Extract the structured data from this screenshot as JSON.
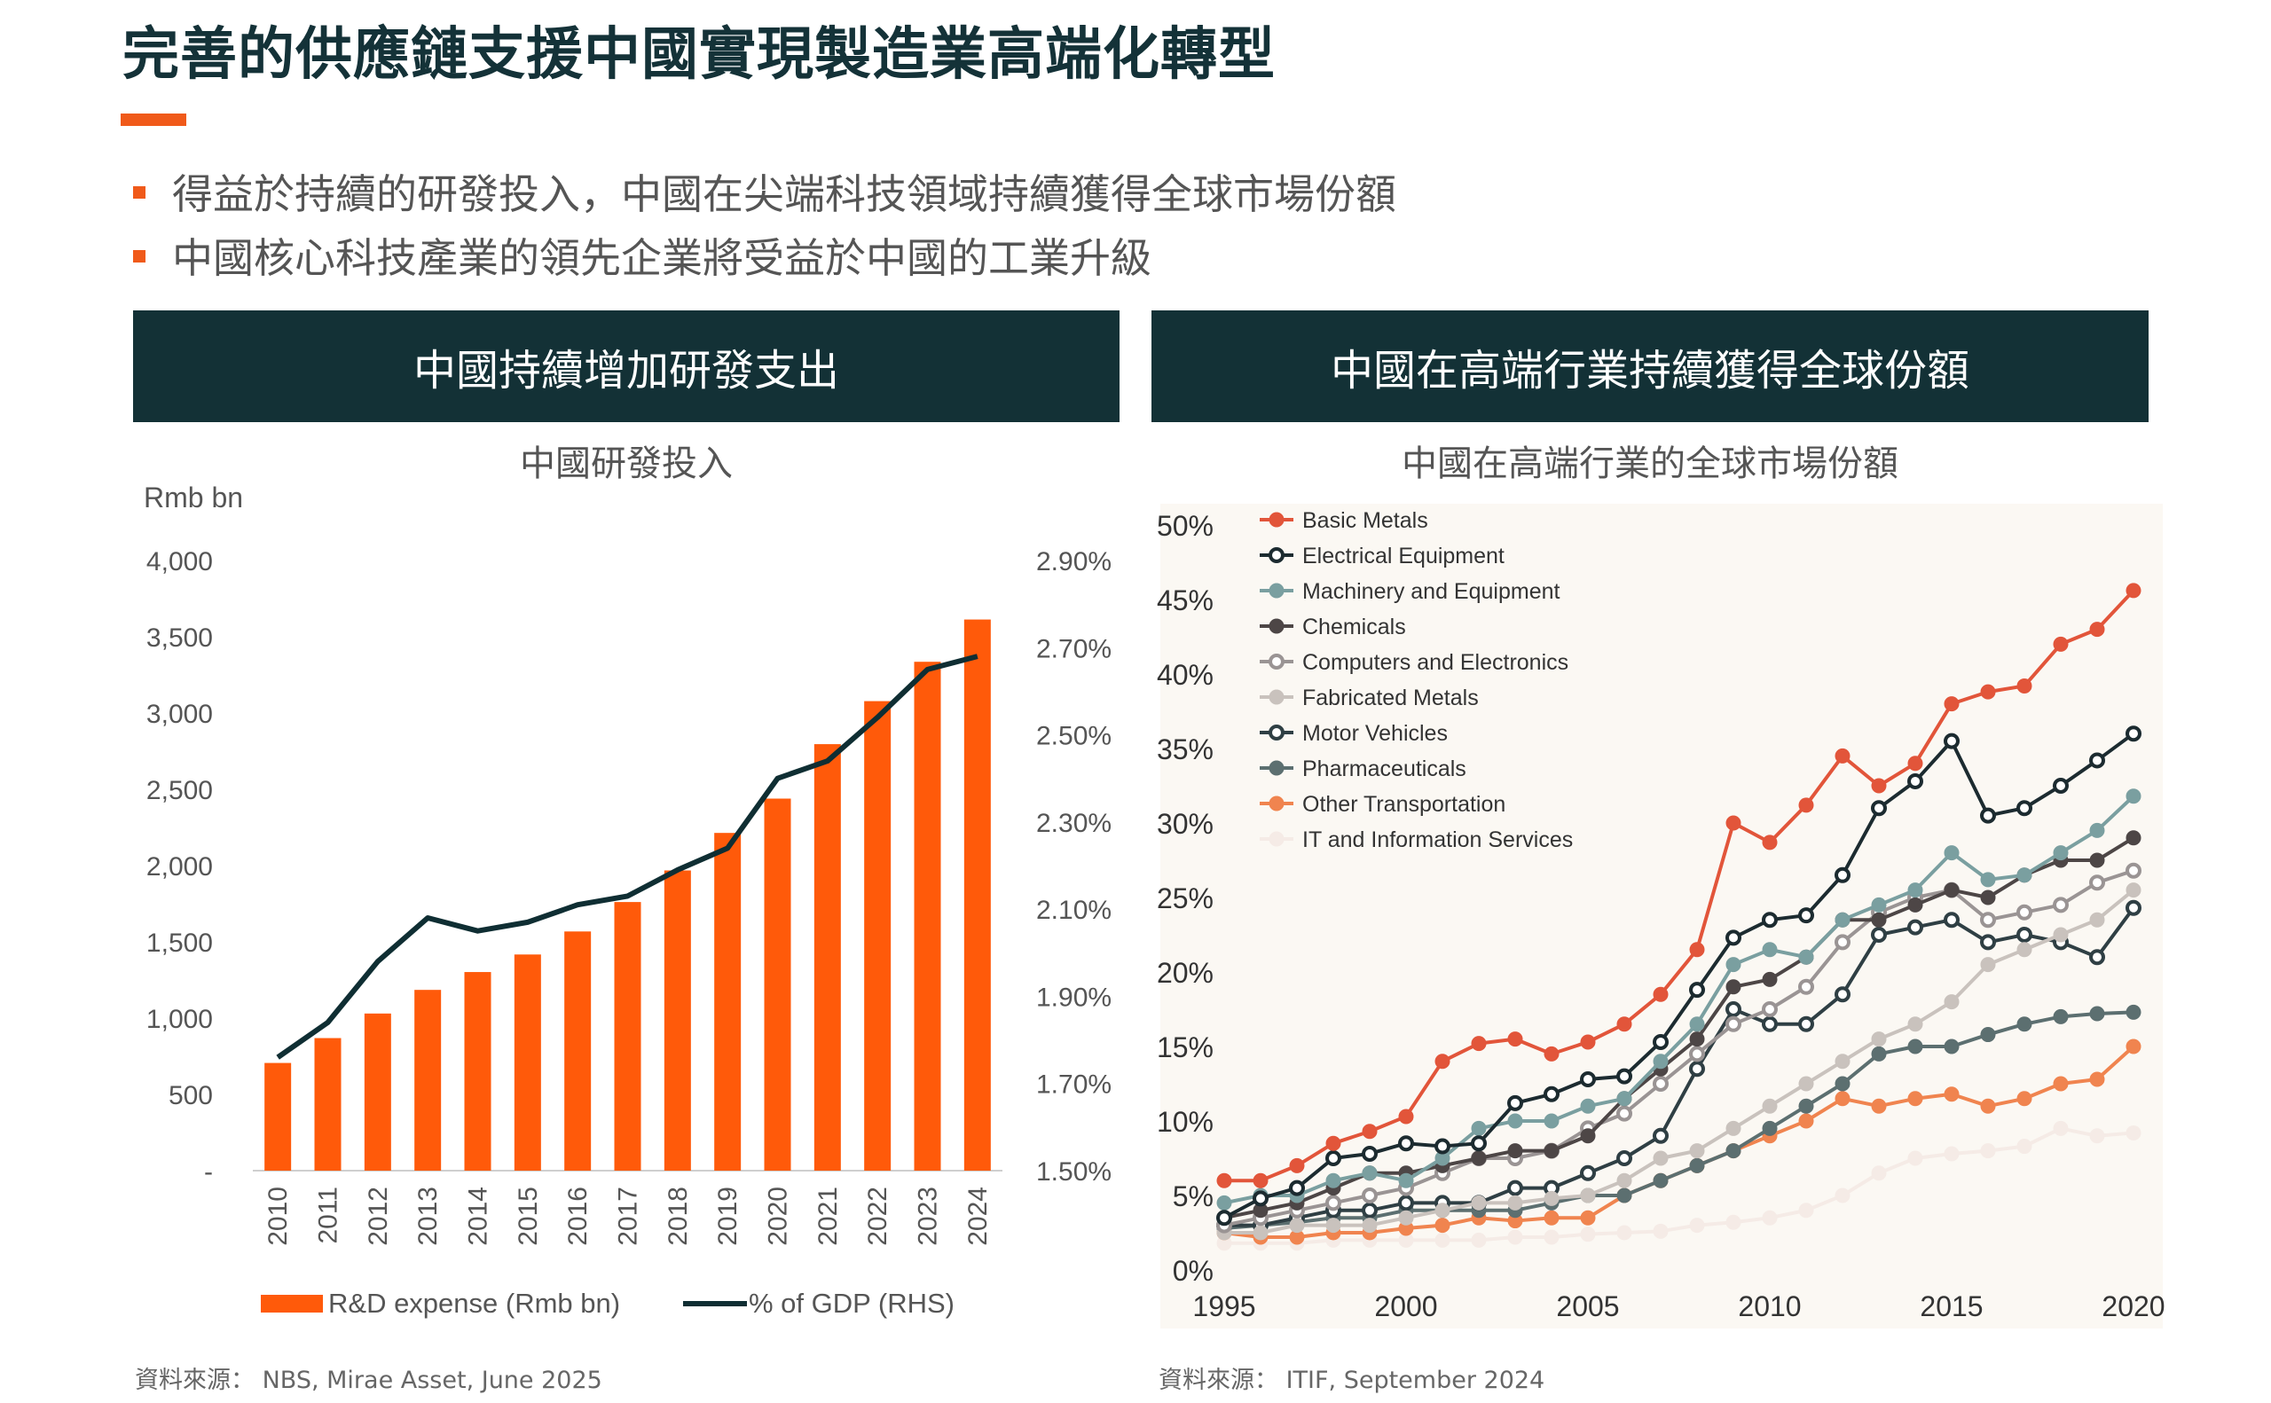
{
  "page": {
    "title": "完善的供應鏈支援中國實現製造業高端化轉型",
    "bullets": [
      "得益於持續的研發投入，中國在尖端科技領域持續獲得全球市場份額",
      "中國核心科技產業的領先企業將受益於中國的工業升級"
    ],
    "colors": {
      "accent": "#f05a1a",
      "header_bg": "#133136"
    }
  },
  "left_panel": {
    "header": "中國持續增加研發支出",
    "source": "資料來源： NBS, Mirae Asset, June 2025"
  },
  "right_panel": {
    "header": "中國在高端行業持續獲得全球份額",
    "source": "資料來源： ITIF, September 2024"
  },
  "chart_data": [
    {
      "type": "bar",
      "title": "中國研發投入",
      "ylabel": "Rmb bn",
      "ylim": [
        0,
        4000
      ],
      "yticks": [
        "-",
        "500",
        "1,000",
        "1,500",
        "2,000",
        "2,500",
        "3,000",
        "3,500",
        "4,000"
      ],
      "y2lim": [
        1.5,
        2.9
      ],
      "y2ticks": [
        "1.50%",
        "1.70%",
        "1.90%",
        "2.10%",
        "2.30%",
        "2.50%",
        "2.70%",
        "2.90%"
      ],
      "categories": [
        "2010",
        "2011",
        "2012",
        "2013",
        "2014",
        "2015",
        "2016",
        "2017",
        "2018",
        "2019",
        "2020",
        "2021",
        "2022",
        "2023",
        "2024"
      ],
      "series": [
        {
          "name": "R&D expense (Rmb bn)",
          "type": "bar",
          "color": "#ff5a0a",
          "values": [
            706,
            869,
            1030,
            1185,
            1302,
            1417,
            1568,
            1761,
            1968,
            2214,
            2439,
            2796,
            3078,
            3336,
            3613
          ]
        },
        {
          "name": "% of GDP (RHS)",
          "type": "line",
          "axis": "right",
          "color": "#0f2e33",
          "values": [
            1.76,
            1.84,
            1.98,
            2.08,
            2.05,
            2.07,
            2.11,
            2.13,
            2.19,
            2.24,
            2.4,
            2.44,
            2.54,
            2.65,
            2.68
          ]
        }
      ]
    },
    {
      "type": "line",
      "title": "中國在高端行業的全球市場份額",
      "xlim": [
        1995,
        2020
      ],
      "xticks": [
        "1995",
        "2000",
        "2005",
        "2010",
        "2015",
        "2020"
      ],
      "ylim": [
        0,
        50
      ],
      "yticks": [
        "0%",
        "5%",
        "10%",
        "15%",
        "20%",
        "25%",
        "30%",
        "35%",
        "40%",
        "45%",
        "50%"
      ],
      "legend_position": "top-left",
      "plot_bg": "#fbf8f3",
      "x": [
        1995,
        1996,
        1997,
        1998,
        1999,
        2000,
        2001,
        2002,
        2003,
        2004,
        2005,
        2006,
        2007,
        2008,
        2009,
        2010,
        2011,
        2012,
        2013,
        2014,
        2015,
        2016,
        2017,
        2018,
        2019,
        2020
      ],
      "series": [
        {
          "name": "Basic Metals",
          "color": "#e2553a",
          "filled": true,
          "values": [
            6.0,
            6.0,
            7.0,
            8.5,
            9.3,
            10.3,
            14.0,
            15.2,
            15.5,
            14.5,
            15.3,
            16.5,
            18.5,
            21.5,
            30.0,
            28.7,
            31.2,
            34.5,
            32.5,
            34.0,
            38.0,
            38.8,
            39.2,
            42.0,
            43.0,
            45.6
          ]
        },
        {
          "name": "Electrical Equipment",
          "color": "#1c2b30",
          "filled": false,
          "values": [
            3.5,
            4.8,
            5.5,
            7.5,
            7.8,
            8.5,
            8.3,
            8.5,
            11.2,
            11.8,
            12.8,
            13.0,
            15.3,
            18.8,
            22.3,
            23.5,
            23.8,
            26.5,
            31.0,
            32.8,
            35.5,
            30.5,
            31.0,
            32.5,
            34.2,
            36.0
          ]
        },
        {
          "name": "Machinery and Equipment",
          "color": "#7a9fa0",
          "filled": true,
          "values": [
            4.5,
            5.0,
            5.0,
            6.0,
            6.5,
            6.0,
            7.5,
            9.5,
            10.0,
            10.0,
            11.0,
            11.5,
            14.0,
            16.5,
            20.5,
            21.5,
            21.0,
            23.5,
            24.5,
            25.5,
            28.0,
            26.2,
            26.5,
            28.0,
            29.5,
            31.8
          ]
        },
        {
          "name": "Chemicals",
          "color": "#4d4646",
          "filled": true,
          "values": [
            3.5,
            4.0,
            4.5,
            5.5,
            6.5,
            6.5,
            7.0,
            7.5,
            8.0,
            8.0,
            9.0,
            11.5,
            13.5,
            15.5,
            19.0,
            19.5,
            21.0,
            23.5,
            23.5,
            24.5,
            25.5,
            25.0,
            26.5,
            27.5,
            27.5,
            29.0
          ]
        },
        {
          "name": "Computers and Electronics",
          "color": "#9a9494",
          "filled": false,
          "values": [
            3.0,
            3.5,
            4.0,
            4.5,
            5.0,
            5.5,
            6.5,
            7.5,
            7.5,
            8.0,
            9.5,
            10.5,
            12.5,
            14.5,
            16.5,
            17.5,
            19.0,
            22.0,
            24.0,
            25.0,
            25.5,
            23.5,
            24.0,
            24.5,
            26.0,
            26.8
          ]
        },
        {
          "name": "Fabricated Metals",
          "color": "#c9c2bd",
          "filled": true,
          "values": [
            2.5,
            2.5,
            3.0,
            3.0,
            3.0,
            3.5,
            4.0,
            4.5,
            4.5,
            4.8,
            5.0,
            6.0,
            7.5,
            8.0,
            9.5,
            11.0,
            12.5,
            14.0,
            15.5,
            16.5,
            18.0,
            20.5,
            21.5,
            22.5,
            23.5,
            25.5
          ]
        },
        {
          "name": "Motor Vehicles",
          "color": "#2f3f44",
          "filled": false,
          "values": [
            3.0,
            3.0,
            3.5,
            4.0,
            4.0,
            4.5,
            4.5,
            4.5,
            5.5,
            5.5,
            6.5,
            7.5,
            9.0,
            13.5,
            17.5,
            16.5,
            16.5,
            18.5,
            22.5,
            23.0,
            23.5,
            22.0,
            22.5,
            22.0,
            21.0,
            24.3
          ]
        },
        {
          "name": "Pharmaceuticals",
          "color": "#5c6f70",
          "filled": true,
          "values": [
            2.8,
            3.0,
            3.2,
            3.5,
            3.5,
            4.0,
            4.0,
            4.0,
            4.0,
            4.5,
            5.0,
            5.0,
            6.0,
            7.0,
            8.0,
            9.5,
            11.0,
            12.5,
            14.5,
            15.0,
            15.0,
            15.8,
            16.5,
            17.0,
            17.2,
            17.3
          ]
        },
        {
          "name": "Other Transportation",
          "color": "#f0844f",
          "filled": true,
          "values": [
            2.5,
            2.2,
            2.2,
            2.5,
            2.5,
            2.8,
            3.0,
            3.5,
            3.3,
            3.5,
            3.5,
            5.0,
            6.0,
            7.0,
            8.0,
            9.0,
            10.0,
            11.5,
            11.0,
            11.5,
            11.8,
            11.0,
            11.5,
            12.5,
            12.8,
            15.0
          ]
        },
        {
          "name": "IT and Information Services",
          "color": "#f5ebe6",
          "filled": true,
          "values": [
            1.8,
            1.8,
            1.8,
            2.0,
            2.0,
            2.0,
            2.0,
            2.0,
            2.2,
            2.2,
            2.4,
            2.5,
            2.6,
            3.0,
            3.2,
            3.5,
            4.0,
            5.0,
            6.5,
            7.5,
            7.8,
            8.0,
            8.3,
            9.5,
            9.0,
            9.2
          ]
        }
      ]
    }
  ]
}
